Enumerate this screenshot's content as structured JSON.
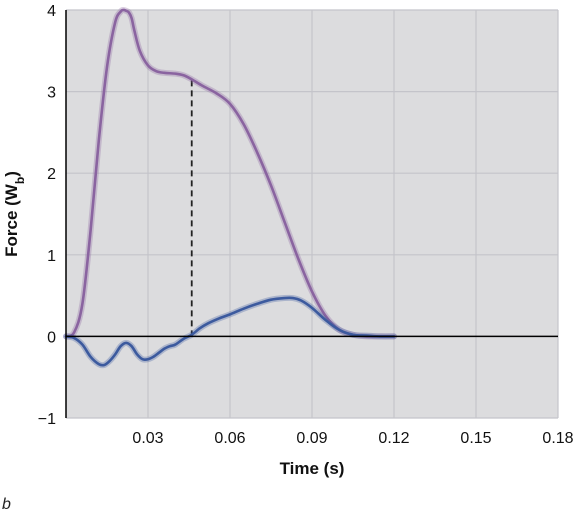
{
  "panel_label": "b",
  "chart_data": {
    "type": "line",
    "xlabel": "Time (s)",
    "ylabel": {
      "main": "Force (W",
      "sub": "b",
      "close": ")"
    },
    "xlim": [
      0,
      0.18
    ],
    "ylim": [
      -1,
      4
    ],
    "x_ticks": [
      {
        "value": 0.03,
        "label": "0.03"
      },
      {
        "value": 0.06,
        "label": "0.06"
      },
      {
        "value": 0.09,
        "label": "0.09"
      },
      {
        "value": 0.12,
        "label": "0.12"
      },
      {
        "value": 0.15,
        "label": "0.15"
      },
      {
        "value": 0.18,
        "label": "0.18"
      }
    ],
    "y_ticks": [
      {
        "value": -1,
        "label": "−1"
      },
      {
        "value": 0,
        "label": "0"
      },
      {
        "value": 1,
        "label": "1"
      },
      {
        "value": 2,
        "label": "2"
      },
      {
        "value": 3,
        "label": "3"
      },
      {
        "value": 4,
        "label": "4"
      }
    ],
    "grid": true,
    "colors": {
      "background": "#dcdcde",
      "grid": "#c4c4ca",
      "axis": "#000000",
      "vertical_force": "#8a64a0",
      "horizontal_force": "#3c5a9e",
      "dashed_marker": "#222222"
    },
    "series": [
      {
        "color_key": "vertical_force",
        "x": [
          0.0,
          0.003,
          0.006,
          0.009,
          0.012,
          0.015,
          0.018,
          0.02,
          0.021,
          0.022,
          0.023,
          0.024,
          0.025,
          0.027,
          0.03,
          0.033,
          0.036,
          0.04,
          0.043,
          0.046,
          0.05,
          0.055,
          0.06,
          0.065,
          0.07,
          0.075,
          0.08,
          0.085,
          0.09,
          0.095,
          0.1,
          0.105,
          0.11,
          0.115,
          0.12
        ],
        "y": [
          0.0,
          0.05,
          0.4,
          1.3,
          2.4,
          3.3,
          3.85,
          3.98,
          4.0,
          3.99,
          3.97,
          3.9,
          3.75,
          3.5,
          3.32,
          3.25,
          3.23,
          3.22,
          3.2,
          3.15,
          3.07,
          2.98,
          2.85,
          2.6,
          2.25,
          1.85,
          1.4,
          0.95,
          0.55,
          0.25,
          0.08,
          0.02,
          0.0,
          0.0,
          0.0
        ]
      },
      {
        "color_key": "horizontal_force",
        "x": [
          0.0,
          0.003,
          0.006,
          0.009,
          0.012,
          0.014,
          0.016,
          0.018,
          0.02,
          0.022,
          0.024,
          0.026,
          0.028,
          0.03,
          0.032,
          0.034,
          0.036,
          0.038,
          0.04,
          0.043,
          0.046,
          0.049,
          0.052,
          0.056,
          0.06,
          0.065,
          0.07,
          0.075,
          0.08,
          0.083,
          0.086,
          0.09,
          0.095,
          0.1,
          0.105,
          0.11,
          0.115,
          0.12
        ],
        "y": [
          0.0,
          -0.02,
          -0.1,
          -0.25,
          -0.34,
          -0.35,
          -0.3,
          -0.22,
          -0.12,
          -0.08,
          -0.12,
          -0.22,
          -0.28,
          -0.28,
          -0.25,
          -0.2,
          -0.15,
          -0.12,
          -0.1,
          -0.03,
          0.02,
          0.1,
          0.16,
          0.22,
          0.27,
          0.34,
          0.4,
          0.45,
          0.47,
          0.47,
          0.44,
          0.35,
          0.2,
          0.08,
          0.02,
          0.01,
          0.0,
          0.0
        ]
      }
    ],
    "annotations": [
      {
        "type": "vertical_dashed_line",
        "x": 0.046,
        "y_from": 0.0,
        "y_to": 3.15
      }
    ]
  }
}
